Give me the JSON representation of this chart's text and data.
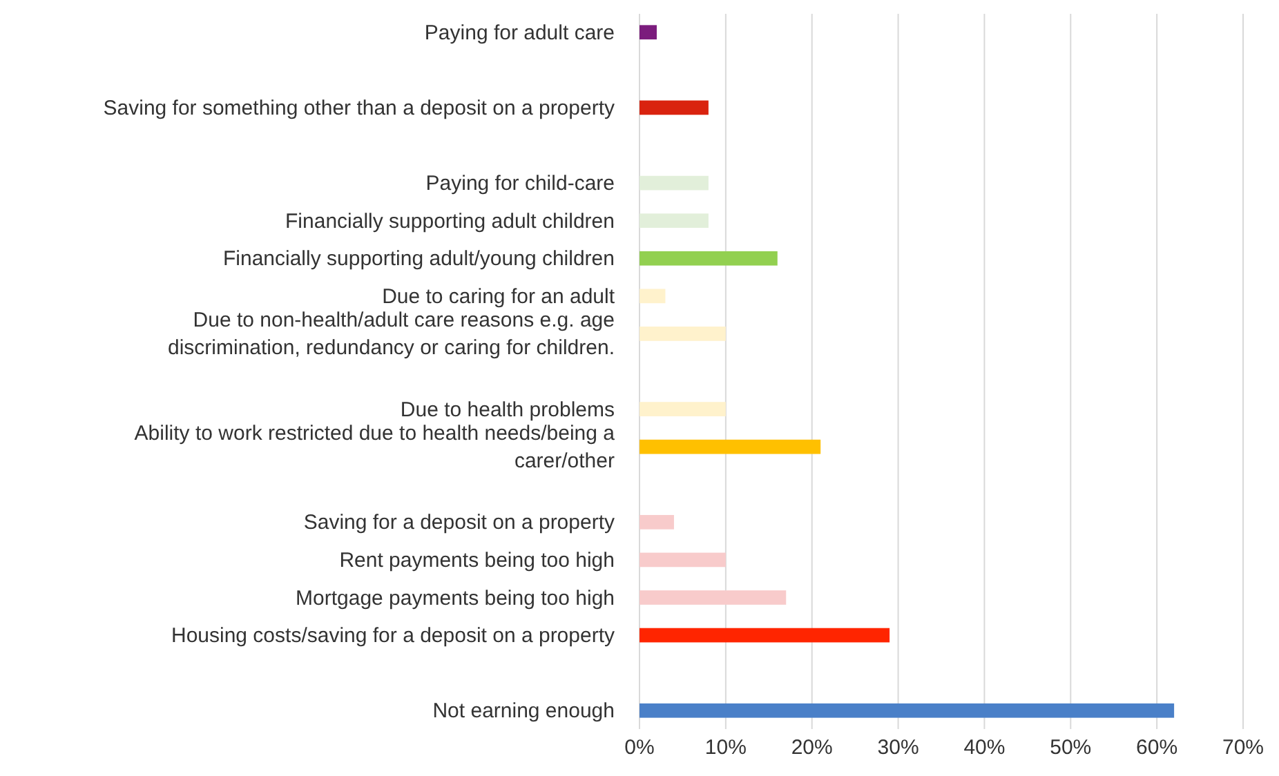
{
  "chart_data": {
    "type": "bar",
    "orientation": "horizontal",
    "categories": [
      "Paying for adult care",
      null,
      "Saving for something other than a deposit on a property",
      null,
      "Paying for child-care",
      "Financially supporting adult children",
      "Financially supporting adult/young children",
      "Due to caring for an adult",
      "Due to non-health/adult care reasons e.g. age discrimination, redundancy or caring for children.",
      null,
      "Due to health problems",
      "Ability to work restricted due to health needs/being a carer/other",
      null,
      "Saving for a deposit on a property",
      "Rent payments being too high",
      "Mortgage payments being too high",
      "Housing costs/saving for a deposit on a property",
      null,
      "Not earning enough"
    ],
    "values": [
      2,
      null,
      8,
      null,
      8,
      8,
      16,
      3,
      10,
      null,
      10,
      21,
      null,
      4,
      10,
      17,
      29,
      null,
      62
    ],
    "colors": [
      "#7b1c7d",
      null,
      "#d9230f",
      null,
      "#e2efda",
      "#e2efda",
      "#92d050",
      "#fff2cc",
      "#fff2cc",
      null,
      "#fff2cc",
      "#ffc000",
      null,
      "#f8cbcb",
      "#f8cbcb",
      "#f8cbcb",
      "#ff2500",
      null,
      "#4a80c8"
    ],
    "xlim": [
      0,
      70
    ],
    "xticks": [
      {
        "value": 0,
        "label": "0%"
      },
      {
        "value": 10,
        "label": "10%"
      },
      {
        "value": 20,
        "label": "20%"
      },
      {
        "value": 30,
        "label": "30%"
      },
      {
        "value": 40,
        "label": "40%"
      },
      {
        "value": 50,
        "label": "50%"
      },
      {
        "value": 60,
        "label": "60%"
      },
      {
        "value": 70,
        "label": "70%"
      }
    ],
    "grid": "x"
  }
}
